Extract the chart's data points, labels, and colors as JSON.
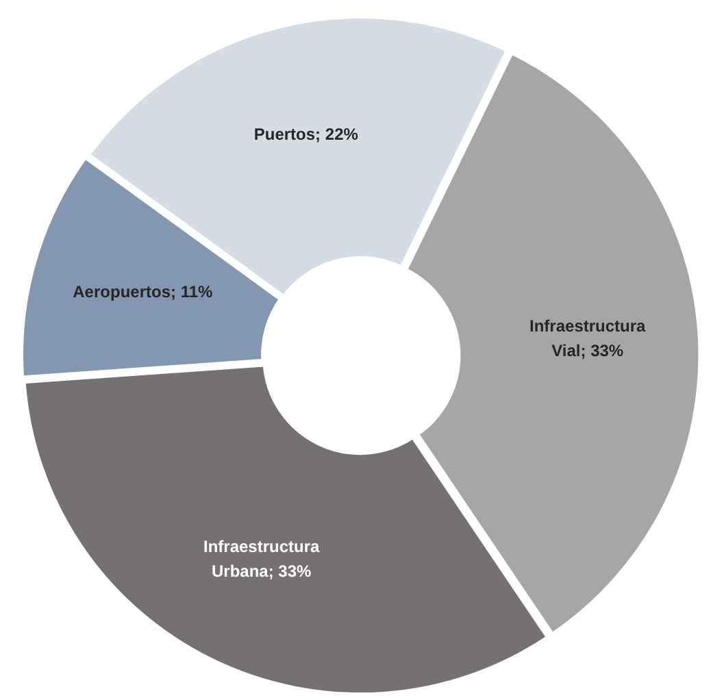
{
  "chart_data": {
    "type": "donut",
    "categories": [
      "Infraestructura Vial",
      "Infraestructura Urbana",
      "Aeropuertos",
      "Puertos"
    ],
    "values": [
      33,
      33,
      11,
      22
    ],
    "value_labels": [
      "33%",
      "33%",
      "11%",
      "22%"
    ],
    "colors": [
      "#a6a6a6",
      "#767171",
      "#8497b0",
      "#d6dce4"
    ],
    "legend": false
  }
}
